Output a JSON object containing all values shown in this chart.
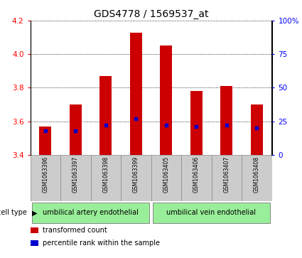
{
  "title": "GDS4778 / 1569537_at",
  "samples": [
    "GSM1063396",
    "GSM1063397",
    "GSM1063398",
    "GSM1063399",
    "GSM1063405",
    "GSM1063406",
    "GSM1063407",
    "GSM1063408"
  ],
  "transformed_counts": [
    3.57,
    3.7,
    3.87,
    4.13,
    4.05,
    3.78,
    3.81,
    3.7
  ],
  "percentile_ranks": [
    18,
    18,
    22,
    27,
    22,
    21,
    22,
    20
  ],
  "ylim_left": [
    3.4,
    4.2
  ],
  "ylim_right": [
    0,
    100
  ],
  "yticks_left": [
    3.4,
    3.6,
    3.8,
    4.0,
    4.2
  ],
  "yticks_right": [
    0,
    25,
    50,
    75,
    100
  ],
  "bar_color": "#cc0000",
  "percentile_color": "#0000cc",
  "background_color": "#ffffff",
  "cell_type_groups": [
    {
      "label": "umbilical artery endothelial",
      "n_samples": 4,
      "color": "#99ee99"
    },
    {
      "label": "umbilical vein endothelial",
      "n_samples": 4,
      "color": "#99ee99"
    }
  ],
  "legend_items": [
    {
      "label": "transformed count",
      "color": "#cc0000"
    },
    {
      "label": "percentile rank within the sample",
      "color": "#0000cc"
    }
  ],
  "bar_width": 0.4,
  "title_fontsize": 10,
  "tick_fontsize": 7.5,
  "sample_fontsize": 5.5
}
